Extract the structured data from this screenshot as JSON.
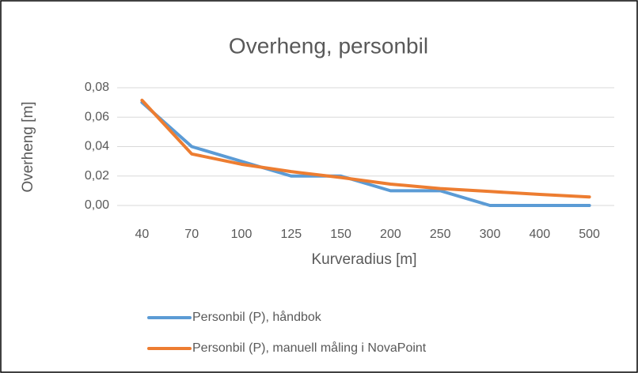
{
  "chart_data": {
    "type": "line",
    "title": "Overheng, personbil",
    "x_label": "Kurveradius [m]",
    "y_label": "Overheng [m]",
    "categories": [
      "40",
      "70",
      "100",
      "125",
      "150",
      "200",
      "250",
      "300",
      "400",
      "500"
    ],
    "series": [
      {
        "name": "Personbil (P), håndbok",
        "color": "#5b9bd5",
        "values": [
          0.07,
          0.04,
          0.03,
          0.02,
          0.02,
          0.01,
          0.01,
          0,
          0,
          0
        ]
      },
      {
        "name": "Personbil (P), manuell måling i NovaPoint",
        "color": "#ed7d31",
        "values": [
          0.0715,
          0.035,
          0.028,
          0.023,
          0.019,
          0.0145,
          0.0115,
          0.0095,
          0.0075,
          0.0058
        ]
      }
    ],
    "ylim": [
      0,
      0.08
    ],
    "yticks": [
      {
        "value": 0,
        "label": "0,00"
      },
      {
        "value": 0.02,
        "label": "0,02"
      },
      {
        "value": 0.04,
        "label": "0,04"
      },
      {
        "value": 0.06,
        "label": "0,06"
      },
      {
        "value": 0.08,
        "label": "0,08"
      }
    ],
    "grid": true,
    "legend": "bottom"
  }
}
